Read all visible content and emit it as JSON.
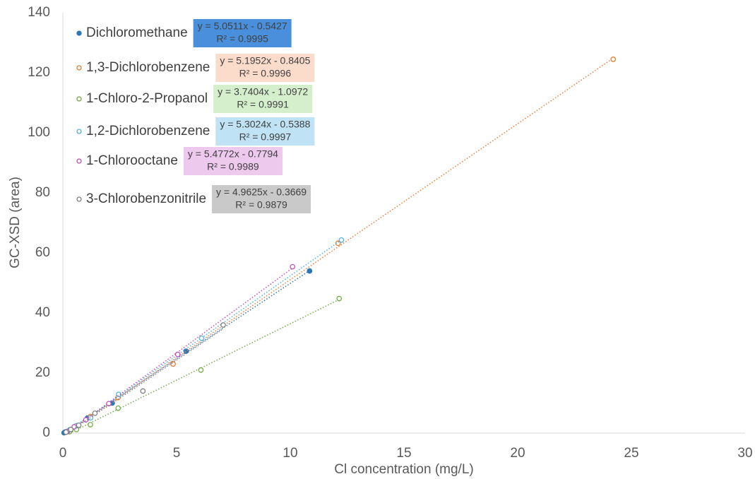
{
  "chart_data": {
    "type": "scatter",
    "x_label": "Cl concentration (mg/L)",
    "y_label": "GC-XSD (area)",
    "xlim": [
      0,
      30
    ],
    "xticks": [
      0,
      5,
      10,
      15,
      20,
      25,
      30
    ],
    "ylim": [
      0,
      140
    ],
    "yticks": [
      0,
      20,
      40,
      60,
      80,
      100,
      120,
      140
    ],
    "grid": false,
    "legend": "upper left",
    "series": [
      {
        "name": "Dichloromethane",
        "color": "#2e75b6",
        "filled": true,
        "box_color": "#4a8fdb",
        "equation": "y = 5.0511x - 0.5427",
        "r_squared": "R² = 0.9995",
        "x": [
          0.05,
          0.11,
          0.22,
          0.54,
          1.08,
          2.17,
          5.42,
          10.85
        ],
        "values": [
          0.1,
          0.4,
          0.6,
          2.2,
          5,
          10,
          27.3,
          54
        ]
      },
      {
        "name": "1,3-Dichlorobenzene",
        "color": "#ed7d31",
        "filled": false,
        "box_color": "#fbdccb",
        "equation": "y = 5.1952x - 0.8405",
        "r_squared": "R² = 0.9996",
        "x": [
          0.24,
          0.6,
          1.21,
          2.42,
          4.85,
          12.1,
          24.2
        ],
        "values": [
          0.5,
          2.4,
          5.5,
          11.8,
          23,
          63.2,
          124.5
        ]
      },
      {
        "name": "1-Chloro-2-Propanol",
        "color": "#70ad47",
        "filled": false,
        "box_color": "#d5efcc",
        "equation": "y = 3.7404x - 1.0972",
        "r_squared": "R² = 0.9991",
        "x": [
          0.3,
          0.6,
          1.21,
          2.43,
          6.07,
          12.15
        ],
        "values": [
          0.5,
          1.2,
          2.8,
          8.3,
          21,
          44.8
        ]
      },
      {
        "name": "1,2-Dichlorobenzene",
        "color": "#4fb3e0",
        "filled": false,
        "box_color": "#bfe3f4",
        "equation": "y = 5.3024x - 0.5388",
        "r_squared": "R² = 0.9997",
        "x": [
          0.3,
          0.61,
          1.22,
          2.45,
          6.1,
          12.25
        ],
        "values": [
          1.1,
          2.5,
          5.1,
          12.9,
          31.6,
          64.3
        ]
      },
      {
        "name": "1-Chlorooctane",
        "color": "#c04fc0",
        "filled": false,
        "box_color": "#edc9ed",
        "equation": "y = 5.4772x - 0.7794",
        "r_squared": "R² = 0.9989",
        "x": [
          0.2,
          0.5,
          1.01,
          2.02,
          5.05,
          10.1
        ],
        "values": [
          0.5,
          2.1,
          4.4,
          9.8,
          26.2,
          55.4
        ]
      },
      {
        "name": "3-Chlorobenzonitrile",
        "color": "#808080",
        "filled": false,
        "box_color": "#c9c9c9",
        "equation": "y = 4.9625x - 0.3669",
        "r_squared": "R² = 0.9879",
        "x": [
          0.14,
          0.35,
          0.7,
          1.41,
          3.52,
          7.05
        ],
        "values": [
          0.3,
          1.2,
          2.6,
          6.6,
          14,
          36
        ]
      }
    ]
  }
}
